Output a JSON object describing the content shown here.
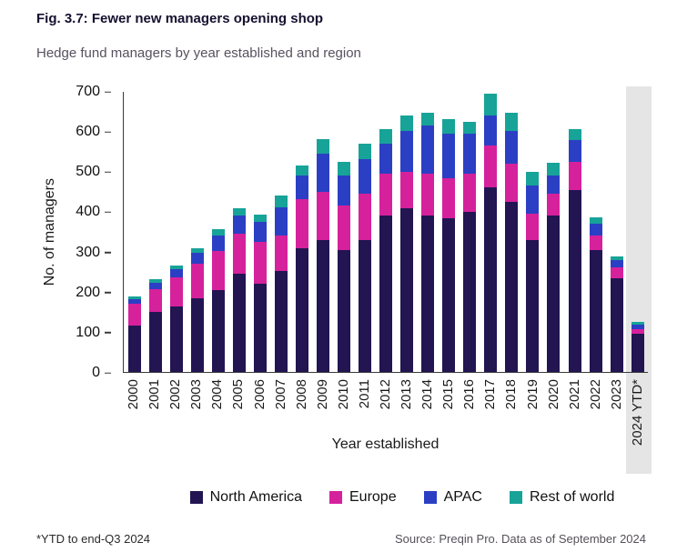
{
  "title": "Fig. 3.7: Fewer new managers opening shop",
  "subtitle": "Hedge fund managers by year established and region",
  "footnote": "*YTD to end-Q3 2024",
  "source": "Source: Preqin Pro. Data as of September 2024",
  "colors": {
    "highlight_band": "#e5e5e5",
    "axis": "#3a3a3a",
    "title_text": "#16102e",
    "subtitle_text": "#57515e"
  },
  "chart_data": {
    "type": "bar",
    "stacked": true,
    "title": "Fig. 3.7: Fewer new managers opening shop",
    "subtitle": "Hedge fund managers by year established and region",
    "xlabel": "Year established",
    "ylabel": "No. of managers",
    "ylim": [
      0,
      700
    ],
    "y_ticks": [
      0,
      100,
      200,
      300,
      400,
      500,
      600,
      700
    ],
    "grid": false,
    "legend_position": "bottom",
    "highlighted_category": "2024 YTD*",
    "categories": [
      "2000",
      "2001",
      "2002",
      "2003",
      "2004",
      "2005",
      "2006",
      "2007",
      "2008",
      "2009",
      "2010",
      "2011",
      "2012",
      "2013",
      "2014",
      "2015",
      "2016",
      "2017",
      "2018",
      "2019",
      "2020",
      "2021",
      "2022",
      "2023",
      "2024 YTD*"
    ],
    "series": [
      {
        "name": "North America",
        "color": "#221551",
        "values": [
          115,
          150,
          163,
          185,
          205,
          245,
          220,
          253,
          310,
          330,
          305,
          330,
          390,
          410,
          390,
          385,
          400,
          462,
          425,
          330,
          390,
          455,
          305,
          235,
          95
        ]
      },
      {
        "name": "Europe",
        "color": "#d6219c",
        "values": [
          55,
          57,
          73,
          85,
          97,
          100,
          105,
          87,
          122,
          120,
          112,
          115,
          105,
          90,
          105,
          100,
          95,
          103,
          95,
          65,
          55,
          70,
          37,
          27,
          12
        ]
      },
      {
        "name": "APAC",
        "color": "#2b3fc4",
        "values": [
          12,
          15,
          20,
          28,
          38,
          45,
          49,
          72,
          60,
          95,
          74,
          86,
          75,
          103,
          122,
          110,
          100,
          75,
          83,
          71,
          47,
          54,
          28,
          17,
          11
        ]
      },
      {
        "name": "Rest of world",
        "color": "#17a398",
        "values": [
          6,
          9,
          11,
          12,
          16,
          20,
          20,
          28,
          25,
          37,
          35,
          40,
          37,
          38,
          31,
          37,
          30,
          55,
          45,
          35,
          31,
          28,
          17,
          9,
          7
        ]
      }
    ]
  }
}
